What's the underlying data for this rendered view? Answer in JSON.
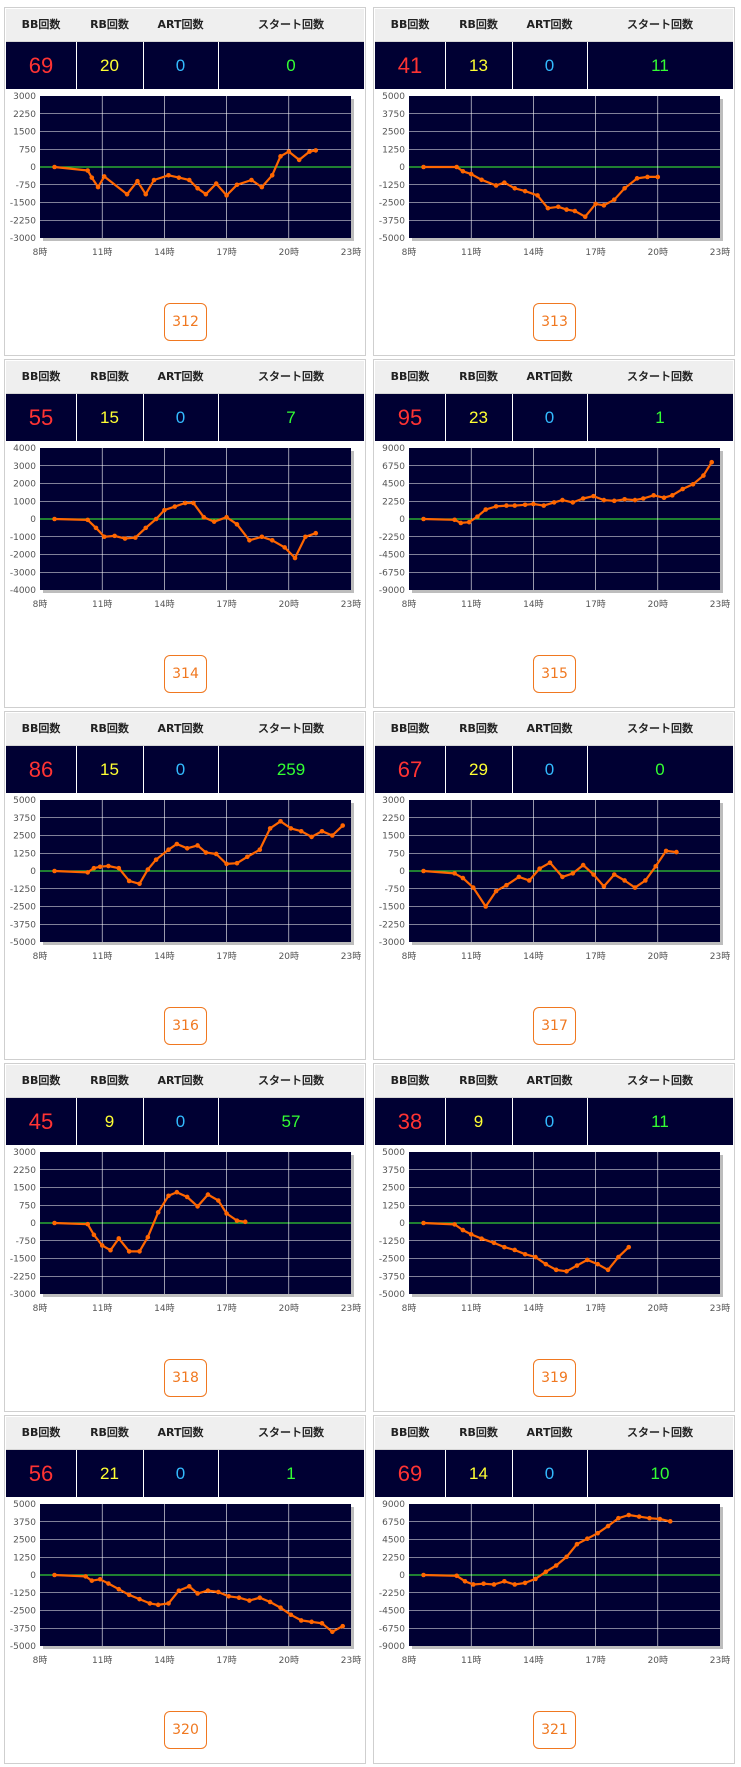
{
  "headers": {
    "bb": "BB回数",
    "rb": "RB回数",
    "art": "ART回数",
    "start": "スタート回数"
  },
  "colors": {
    "bb": "#ff3333",
    "rb": "#ffff33",
    "art": "#33bbff",
    "start": "#33ff33",
    "line": "#ff6600",
    "zero": "#33cc33",
    "plot_bg": "#000033",
    "grid": "#ffffff"
  },
  "machines": [
    {
      "id": "312",
      "bb": "69",
      "rb": "20",
      "art": "0",
      "start": "0",
      "chart_data": {
        "type": "line",
        "x_ticks": [
          "8時",
          "11時",
          "14時",
          "17時",
          "20時",
          "23時"
        ],
        "y_ticks": [
          "3000",
          "2250",
          "1500",
          "750",
          "0",
          "-750",
          "-1500",
          "-2250",
          "-3000"
        ],
        "ylim": [
          -3000,
          3000
        ],
        "xlim": [
          8,
          23
        ],
        "series": [
          {
            "x": [
              8.7,
              10.3,
              10.5,
              10.8,
              11.1,
              12.2,
              12.7,
              13.1,
              13.5,
              14.2,
              14.7,
              15.2,
              15.6,
              16,
              16.5,
              17,
              17.5,
              18.2,
              18.7,
              19.2,
              19.6,
              20,
              20.5,
              21,
              21.3
            ],
            "values": [
              0,
              -150,
              -450,
              -850,
              -400,
              -1150,
              -600,
              -1150,
              -550,
              -350,
              -450,
              -550,
              -900,
              -1150,
              -700,
              -1200,
              -750,
              -550,
              -850,
              -350,
              450,
              650,
              300,
              650,
              700
            ]
          }
        ]
      }
    },
    {
      "id": "313",
      "bb": "41",
      "rb": "13",
      "art": "0",
      "start": "11",
      "chart_data": {
        "type": "line",
        "x_ticks": [
          "8時",
          "11時",
          "14時",
          "17時",
          "20時",
          "23時"
        ],
        "y_ticks": [
          "5000",
          "3750",
          "2500",
          "1250",
          "0",
          "-1250",
          "-2500",
          "-3750",
          "-5000"
        ],
        "ylim": [
          -5000,
          5000
        ],
        "xlim": [
          8,
          23
        ],
        "series": [
          {
            "x": [
              8.7,
              10.3,
              10.6,
              11,
              11.5,
              12.2,
              12.6,
              13.1,
              13.6,
              14.2,
              14.7,
              15.2,
              15.6,
              16,
              16.5,
              17,
              17.4,
              17.9,
              18.4,
              19,
              19.5,
              20
            ],
            "values": [
              0,
              0,
              -300,
              -500,
              -900,
              -1300,
              -1100,
              -1500,
              -1700,
              -2000,
              -2900,
              -2800,
              -3000,
              -3100,
              -3500,
              -2600,
              -2700,
              -2300,
              -1500,
              -800,
              -700,
              -700
            ]
          }
        ]
      }
    },
    {
      "id": "314",
      "bb": "55",
      "rb": "15",
      "art": "0",
      "start": "7",
      "chart_data": {
        "type": "line",
        "x_ticks": [
          "8時",
          "11時",
          "14時",
          "17時",
          "20時",
          "23時"
        ],
        "y_ticks": [
          "4000",
          "3000",
          "2000",
          "1000",
          "0",
          "-1000",
          "-2000",
          "-3000",
          "-4000"
        ],
        "ylim": [
          -4000,
          4000
        ],
        "xlim": [
          8,
          23
        ],
        "series": [
          {
            "x": [
              8.7,
              10.3,
              10.7,
              11.1,
              11.6,
              12.1,
              12.6,
              13.1,
              13.6,
              14,
              14.5,
              15,
              15.4,
              15.9,
              16.4,
              17,
              17.5,
              18.1,
              18.7,
              19.2,
              19.8,
              20.3,
              20.8,
              21.3
            ],
            "values": [
              0,
              -50,
              -500,
              -1000,
              -950,
              -1100,
              -1050,
              -500,
              0,
              500,
              700,
              900,
              900,
              100,
              -150,
              100,
              -300,
              -1200,
              -1000,
              -1200,
              -1600,
              -2200,
              -1000,
              -800
            ]
          }
        ]
      }
    },
    {
      "id": "315",
      "bb": "95",
      "rb": "23",
      "art": "0",
      "start": "1",
      "chart_data": {
        "type": "line",
        "x_ticks": [
          "8時",
          "11時",
          "14時",
          "17時",
          "20時",
          "23時"
        ],
        "y_ticks": [
          "9000",
          "6750",
          "4500",
          "2250",
          "0",
          "-2250",
          "-4500",
          "-6750",
          "-9000"
        ],
        "ylim": [
          -9000,
          9000
        ],
        "xlim": [
          8,
          23
        ],
        "series": [
          {
            "x": [
              8.7,
              10.2,
              10.5,
              10.9,
              11.3,
              11.7,
              12.2,
              12.7,
              13.1,
              13.6,
              14,
              14.5,
              15,
              15.4,
              15.9,
              16.4,
              16.9,
              17.4,
              17.9,
              18.4,
              18.9,
              19.3,
              19.8,
              20.3,
              20.7,
              21.2,
              21.7,
              22.2,
              22.6
            ],
            "values": [
              0,
              -100,
              -500,
              -400,
              300,
              1200,
              1600,
              1700,
              1700,
              1800,
              1900,
              1700,
              2100,
              2400,
              2100,
              2600,
              2900,
              2400,
              2300,
              2500,
              2400,
              2600,
              3000,
              2700,
              3000,
              3800,
              4400,
              5500,
              7200
            ]
          }
        ]
      }
    },
    {
      "id": "316",
      "bb": "86",
      "rb": "15",
      "art": "0",
      "start": "259",
      "chart_data": {
        "type": "line",
        "x_ticks": [
          "8時",
          "11時",
          "14時",
          "17時",
          "20時",
          "23時"
        ],
        "y_ticks": [
          "5000",
          "3750",
          "2500",
          "1250",
          "0",
          "-1250",
          "-2500",
          "-3750",
          "-5000"
        ],
        "ylim": [
          -5000,
          5000
        ],
        "xlim": [
          8,
          23
        ],
        "series": [
          {
            "x": [
              8.7,
              10.3,
              10.6,
              10.9,
              11.3,
              11.8,
              12.3,
              12.8,
              13.2,
              13.6,
              14.2,
              14.6,
              15.1,
              15.6,
              16,
              16.5,
              17,
              17.5,
              18,
              18.6,
              19.1,
              19.6,
              20.1,
              20.6,
              21.1,
              21.6,
              22.1,
              22.6
            ],
            "values": [
              0,
              -100,
              200,
              300,
              350,
              200,
              -700,
              -900,
              100,
              800,
              1500,
              1900,
              1600,
              1800,
              1300,
              1200,
              500,
              550,
              1000,
              1500,
              3000,
              3500,
              3000,
              2800,
              2400,
              2800,
              2500,
              3200
            ]
          }
        ]
      }
    },
    {
      "id": "317",
      "bb": "67",
      "rb": "29",
      "art": "0",
      "start": "0",
      "chart_data": {
        "type": "line",
        "x_ticks": [
          "8時",
          "11時",
          "14時",
          "17時",
          "20時",
          "23時"
        ],
        "y_ticks": [
          "3000",
          "2250",
          "1500",
          "750",
          "0",
          "-750",
          "-1500",
          "-2250",
          "-3000"
        ],
        "ylim": [
          -3000,
          3000
        ],
        "xlim": [
          8,
          23
        ],
        "series": [
          {
            "x": [
              8.7,
              10.2,
              10.6,
              11.1,
              11.7,
              12.2,
              12.7,
              13.3,
              13.8,
              14.3,
              14.8,
              15.4,
              15.9,
              16.4,
              16.9,
              17.4,
              17.9,
              18.4,
              18.9,
              19.4,
              19.9,
              20.4,
              20.9
            ],
            "values": [
              0,
              -100,
              -300,
              -700,
              -1500,
              -850,
              -600,
              -250,
              -400,
              100,
              350,
              -250,
              -100,
              250,
              -150,
              -650,
              -150,
              -400,
              -700,
              -400,
              200,
              850,
              800
            ]
          }
        ]
      }
    },
    {
      "id": "318",
      "bb": "45",
      "rb": "9",
      "art": "0",
      "start": "57",
      "chart_data": {
        "type": "line",
        "x_ticks": [
          "8時",
          "11時",
          "14時",
          "17時",
          "20時",
          "23時"
        ],
        "y_ticks": [
          "3000",
          "2250",
          "1500",
          "750",
          "0",
          "-750",
          "-1500",
          "-2250",
          "-3000"
        ],
        "ylim": [
          -3000,
          3000
        ],
        "xlim": [
          8,
          23
        ],
        "series": [
          {
            "x": [
              8.7,
              10.3,
              10.6,
              11,
              11.4,
              11.8,
              12.3,
              12.8,
              13.2,
              13.7,
              14.2,
              14.6,
              15.1,
              15.6,
              16.1,
              16.6,
              17,
              17.5,
              17.9
            ],
            "values": [
              0,
              -50,
              -500,
              -950,
              -1150,
              -650,
              -1200,
              -1200,
              -600,
              450,
              1150,
              1300,
              1100,
              700,
              1200,
              950,
              400,
              100,
              50
            ]
          }
        ]
      }
    },
    {
      "id": "319",
      "bb": "38",
      "rb": "9",
      "art": "0",
      "start": "11",
      "chart_data": {
        "type": "line",
        "x_ticks": [
          "8時",
          "11時",
          "14時",
          "17時",
          "20時",
          "23時"
        ],
        "y_ticks": [
          "5000",
          "3750",
          "2500",
          "1250",
          "0",
          "-1250",
          "-2500",
          "-3750",
          "-5000"
        ],
        "ylim": [
          -5000,
          5000
        ],
        "xlim": [
          8,
          23
        ],
        "series": [
          {
            "x": [
              8.7,
              10.2,
              10.6,
              11,
              11.5,
              12.1,
              12.6,
              13.1,
              13.6,
              14.1,
              14.6,
              15.1,
              15.6,
              16.1,
              16.6,
              17.1,
              17.6,
              18.1,
              18.6
            ],
            "values": [
              0,
              -100,
              -500,
              -800,
              -1100,
              -1400,
              -1700,
              -1900,
              -2200,
              -2400,
              -2900,
              -3300,
              -3400,
              -3000,
              -2600,
              -2900,
              -3300,
              -2400,
              -1700
            ]
          }
        ]
      }
    },
    {
      "id": "320",
      "bb": "56",
      "rb": "21",
      "art": "0",
      "start": "1",
      "chart_data": {
        "type": "line",
        "x_ticks": [
          "8時",
          "11時",
          "14時",
          "17時",
          "20時",
          "23時"
        ],
        "y_ticks": [
          "5000",
          "3750",
          "2500",
          "1250",
          "0",
          "-1250",
          "-2500",
          "-3750",
          "-5000"
        ],
        "ylim": [
          -5000,
          5000
        ],
        "xlim": [
          8,
          23
        ],
        "series": [
          {
            "x": [
              8.7,
              10.2,
              10.5,
              10.9,
              11.3,
              11.8,
              12.3,
              12.8,
              13.3,
              13.7,
              14.2,
              14.7,
              15.2,
              15.6,
              16.1,
              16.6,
              17.1,
              17.6,
              18.1,
              18.6,
              19.1,
              19.6,
              20.1,
              20.6,
              21.1,
              21.6,
              22.1,
              22.6
            ],
            "values": [
              0,
              -100,
              -400,
              -300,
              -600,
              -1000,
              -1400,
              -1700,
              -2000,
              -2100,
              -2000,
              -1100,
              -800,
              -1300,
              -1100,
              -1200,
              -1500,
              -1600,
              -1800,
              -1600,
              -1900,
              -2300,
              -2800,
              -3200,
              -3300,
              -3400,
              -4000,
              -3600
            ]
          }
        ]
      }
    },
    {
      "id": "321",
      "bb": "69",
      "rb": "14",
      "art": "0",
      "start": "10",
      "chart_data": {
        "type": "line",
        "x_ticks": [
          "8時",
          "11時",
          "14時",
          "17時",
          "20時",
          "23時"
        ],
        "y_ticks": [
          "9000",
          "6750",
          "4500",
          "2250",
          "0",
          "-2250",
          "-4500",
          "-6750",
          "-9000"
        ],
        "ylim": [
          -9000,
          9000
        ],
        "xlim": [
          8,
          23
        ],
        "series": [
          {
            "x": [
              8.7,
              10.3,
              10.7,
              11.1,
              11.6,
              12.1,
              12.6,
              13.1,
              13.6,
              14.1,
              14.6,
              15.1,
              15.6,
              16.1,
              16.6,
              17.1,
              17.6,
              18.1,
              18.6,
              19.1,
              19.6,
              20.1,
              20.6
            ],
            "values": [
              0,
              -100,
              -800,
              -1200,
              -1100,
              -1200,
              -800,
              -1200,
              -1000,
              -500,
              400,
              1200,
              2300,
              3900,
              4600,
              5300,
              6200,
              7200,
              7600,
              7400,
              7200,
              7100,
              6800
            ]
          }
        ]
      }
    }
  ]
}
